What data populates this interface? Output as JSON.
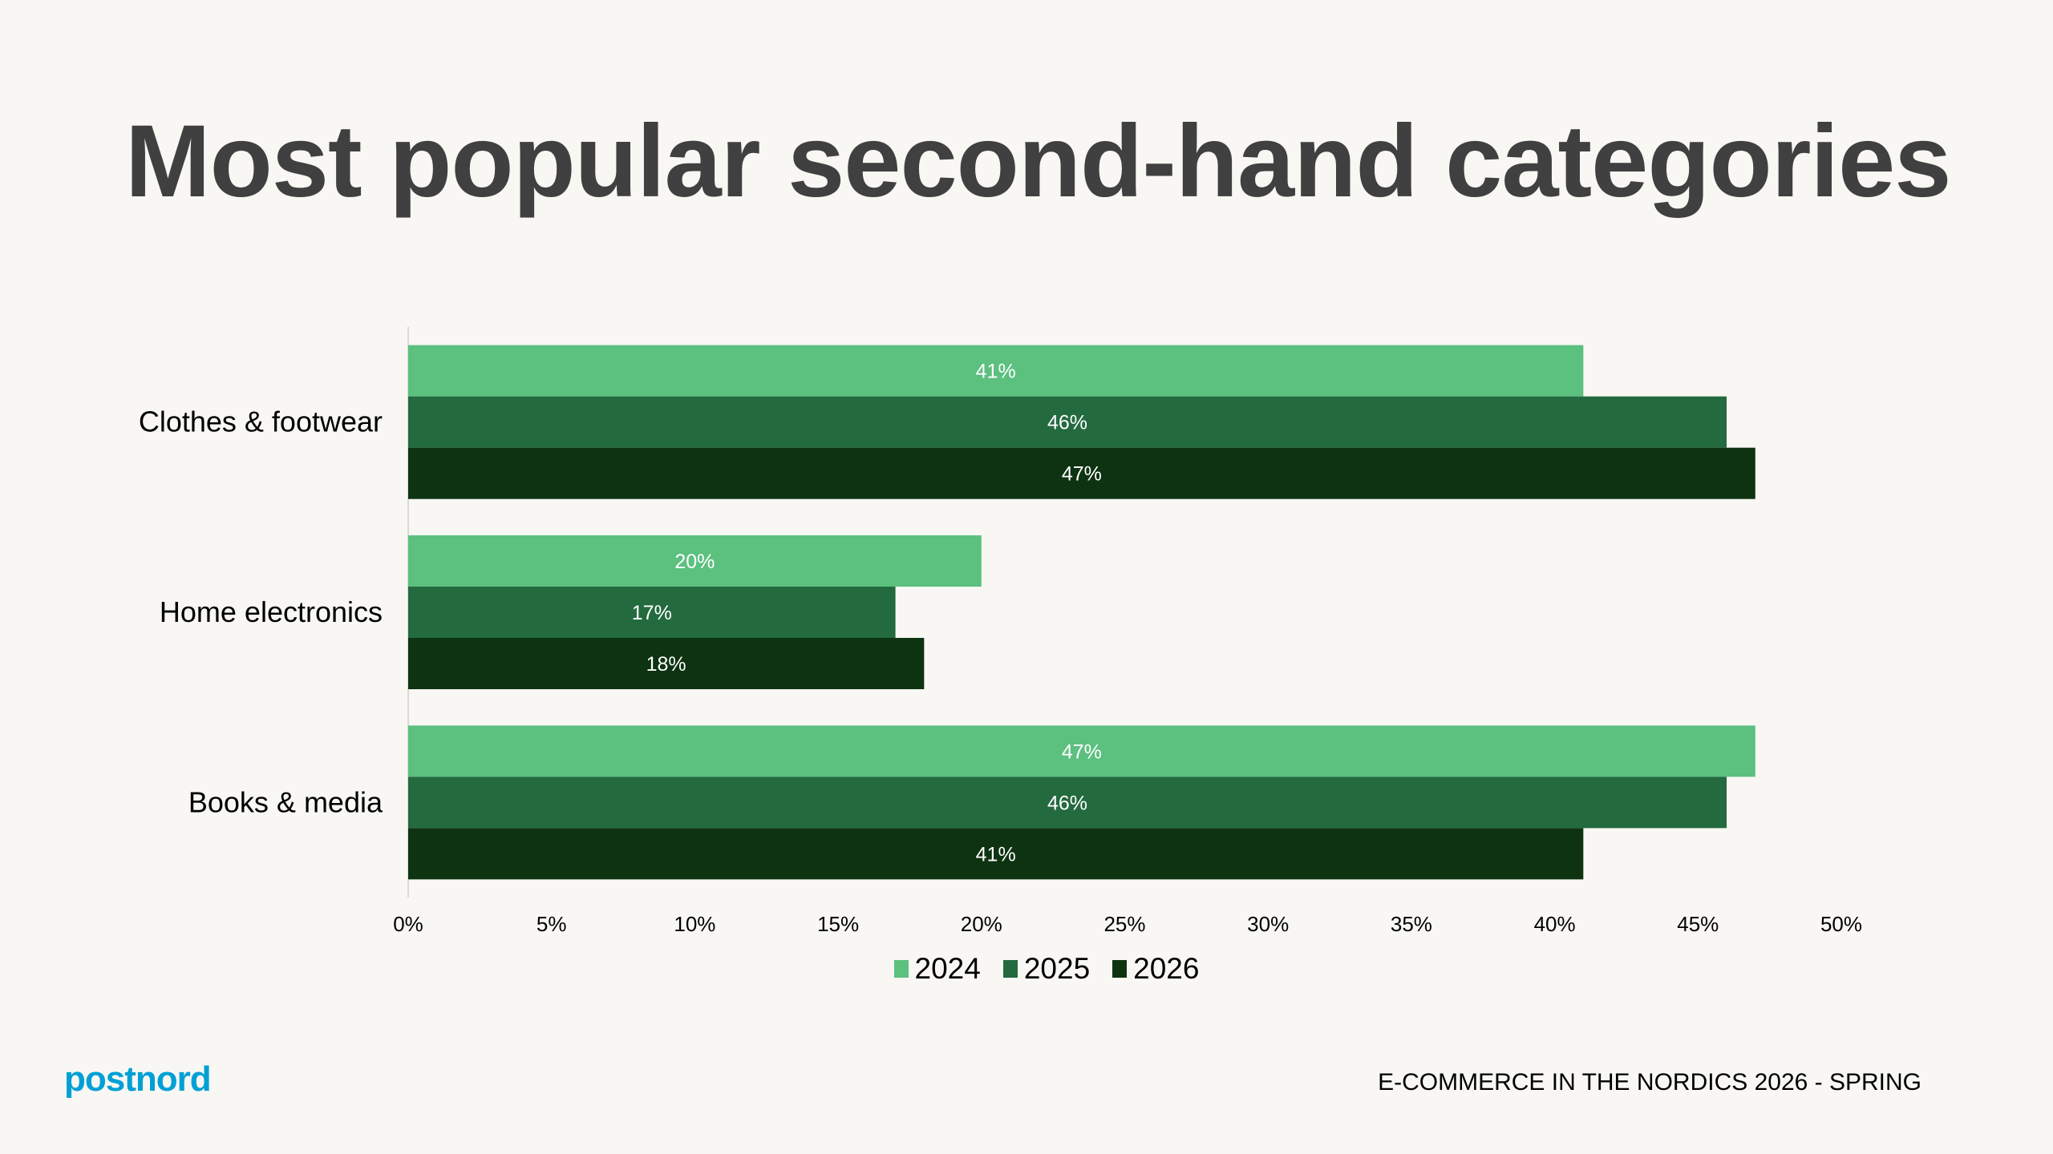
{
  "title": "Most popular second-hand categories",
  "chart_data": {
    "type": "bar",
    "orientation": "horizontal",
    "categories": [
      "Clothes & footwear",
      "Home electronics",
      "Books & media"
    ],
    "series": [
      {
        "name": "2024",
        "color": "#5cc07f",
        "values": [
          41,
          20,
          47
        ]
      },
      {
        "name": "2025",
        "color": "#236a3f",
        "values": [
          46,
          17,
          46
        ]
      },
      {
        "name": "2026",
        "color": "#0d3311",
        "values": [
          47,
          18,
          41
        ]
      }
    ],
    "xlim": [
      0,
      50
    ],
    "xticks": [
      0,
      5,
      10,
      15,
      20,
      25,
      30,
      35,
      40,
      45,
      50
    ],
    "tick_format": "%",
    "data_labels": true,
    "grid": false,
    "legend": "bottom"
  },
  "logo": "postnord",
  "footer": "E-COMMERCE IN THE NORDICS 2026 - SPRING"
}
